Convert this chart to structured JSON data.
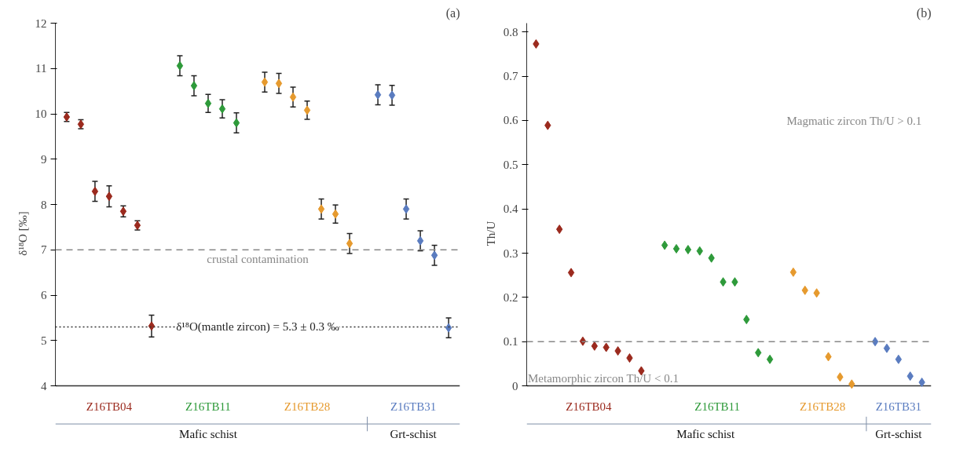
{
  "chart_data": [
    {
      "type": "scatter",
      "title": "(a)",
      "ylabel": "δ¹⁸O [‰]",
      "marker": "diamond",
      "grid": false,
      "tick_labels": "y",
      "categories": [
        null,
        null,
        null,
        null,
        null,
        null,
        null,
        null,
        null,
        null,
        null,
        null,
        null,
        null,
        null,
        null,
        null,
        null,
        null,
        null,
        null,
        null,
        null,
        null,
        null,
        null,
        null,
        null
      ],
      "ylim": [
        4,
        12
      ],
      "yticks": [
        4,
        5,
        6,
        7,
        8,
        9,
        10,
        11,
        12
      ],
      "series": [
        {
          "name": "Z16TB04",
          "color": "#9b2a1e",
          "values": [
            9.93,
            9.77,
            8.29,
            8.18,
            7.85,
            7.54,
            5.32,
            null,
            null,
            null,
            null,
            null,
            null,
            null,
            null,
            null,
            null,
            null,
            null,
            null,
            null,
            null,
            null,
            null,
            null,
            null,
            null,
            null
          ],
          "errors": [
            0.1,
            0.1,
            0.22,
            0.23,
            0.12,
            0.1,
            0.24,
            null,
            null,
            null,
            null,
            null,
            null,
            null,
            null,
            null,
            null,
            null,
            null,
            null,
            null,
            null,
            null,
            null,
            null,
            null,
            null,
            null
          ]
        },
        {
          "name": "Z16TB11",
          "color": "#2e9a3a",
          "values": [
            null,
            null,
            null,
            null,
            null,
            null,
            null,
            null,
            11.06,
            10.62,
            10.23,
            10.11,
            9.8,
            null,
            null,
            null,
            null,
            null,
            null,
            null,
            null,
            null,
            null,
            null,
            null,
            null,
            null,
            null
          ],
          "errors": [
            null,
            null,
            null,
            null,
            null,
            null,
            null,
            null,
            0.22,
            0.22,
            0.2,
            0.2,
            0.22,
            null,
            null,
            null,
            null,
            null,
            null,
            null,
            null,
            null,
            null,
            null,
            null,
            null,
            null,
            null
          ]
        },
        {
          "name": "Z16TB28",
          "color": "#e69a2e",
          "values": [
            null,
            null,
            null,
            null,
            null,
            null,
            null,
            null,
            null,
            null,
            null,
            null,
            null,
            null,
            10.7,
            10.67,
            10.37,
            10.08,
            7.9,
            7.79,
            7.14,
            null,
            null,
            null,
            null,
            null,
            null,
            null
          ],
          "errors": [
            null,
            null,
            null,
            null,
            null,
            null,
            null,
            null,
            null,
            null,
            null,
            null,
            null,
            null,
            0.22,
            0.22,
            0.22,
            0.2,
            0.22,
            0.2,
            0.22,
            null,
            null,
            null,
            null,
            null,
            null,
            null
          ]
        },
        {
          "name": "Z16TB31",
          "color": "#5a7cc0",
          "values": [
            null,
            null,
            null,
            null,
            null,
            null,
            null,
            null,
            null,
            null,
            null,
            null,
            null,
            null,
            null,
            null,
            null,
            null,
            null,
            null,
            null,
            null,
            10.42,
            10.41,
            7.9,
            7.2,
            6.88,
            5.28
          ],
          "errors": [
            null,
            null,
            null,
            null,
            null,
            null,
            null,
            null,
            null,
            null,
            null,
            null,
            null,
            null,
            null,
            null,
            null,
            null,
            null,
            null,
            null,
            null,
            0.22,
            0.22,
            0.22,
            0.22,
            0.22,
            0.22
          ]
        }
      ],
      "ref_lines": [
        {
          "axis": "y",
          "value": 7,
          "label": "crustal contamination",
          "color": "#888888",
          "line_style": "dashed"
        },
        {
          "axis": "y",
          "value": 5.3,
          "label": "δ¹⁸O(mantle zircon) = 5.3 ± 0.3 ‰",
          "color": "#333333",
          "line_style": "dotted"
        }
      ],
      "annotations": [
        "Mafic schist",
        "Grt-schist"
      ]
    },
    {
      "type": "scatter",
      "title": "(b)",
      "ylabel": "Th/U",
      "marker": "diamond",
      "grid": false,
      "tick_labels": "y",
      "categories": [
        null,
        null,
        null,
        null,
        null,
        null,
        null,
        null,
        null,
        null,
        null,
        null,
        null,
        null,
        null,
        null,
        null,
        null,
        null,
        null,
        null,
        null,
        null,
        null,
        null,
        null,
        null,
        null,
        null,
        null,
        null,
        null,
        null,
        null
      ],
      "ylim": [
        0,
        0.82
      ],
      "yticks": [
        0,
        0.1,
        0.2,
        0.3,
        0.4,
        0.5,
        0.6,
        0.7,
        0.8
      ],
      "series": [
        {
          "name": "Z16TB04",
          "color": "#9b2a1e",
          "values": [
            0.773,
            0.589,
            0.354,
            0.256,
            0.101,
            0.09,
            0.087,
            0.079,
            0.063,
            0.034,
            null,
            null,
            null,
            null,
            null,
            null,
            null,
            null,
            null,
            null,
            null,
            null,
            null,
            null,
            null,
            null,
            null,
            null,
            null,
            null,
            null,
            null,
            null,
            null
          ]
        },
        {
          "name": "Z16TB11",
          "color": "#2e9a3a",
          "values": [
            null,
            null,
            null,
            null,
            null,
            null,
            null,
            null,
            null,
            null,
            null,
            0.318,
            0.31,
            0.308,
            0.305,
            0.289,
            0.235,
            0.235,
            0.15,
            0.075,
            0.06,
            null,
            null,
            null,
            null,
            null,
            null,
            null,
            null,
            null,
            null,
            null,
            null,
            null
          ]
        },
        {
          "name": "Z16TB28",
          "color": "#e69a2e",
          "values": [
            null,
            null,
            null,
            null,
            null,
            null,
            null,
            null,
            null,
            null,
            null,
            null,
            null,
            null,
            null,
            null,
            null,
            null,
            null,
            null,
            null,
            null,
            0.257,
            0.216,
            0.21,
            0.066,
            0.02,
            0.004,
            null,
            null,
            null,
            null,
            null,
            null
          ]
        },
        {
          "name": "Z16TB31",
          "color": "#5a7cc0",
          "values": [
            null,
            null,
            null,
            null,
            null,
            null,
            null,
            null,
            null,
            null,
            null,
            null,
            null,
            null,
            null,
            null,
            null,
            null,
            null,
            null,
            null,
            null,
            null,
            null,
            null,
            null,
            null,
            null,
            null,
            0.1,
            0.085,
            0.06,
            0.022,
            0.008
          ]
        }
      ],
      "ref_lines": [
        {
          "axis": "y",
          "value": 0.1,
          "color": "#888888",
          "line_style": "dashed"
        }
      ],
      "annotations": [
        "Magmatic zircon Th/U > 0.1",
        "Metamorphic zircon Th/U < 0.1",
        "Mafic schist",
        "Grt-schist"
      ]
    }
  ]
}
